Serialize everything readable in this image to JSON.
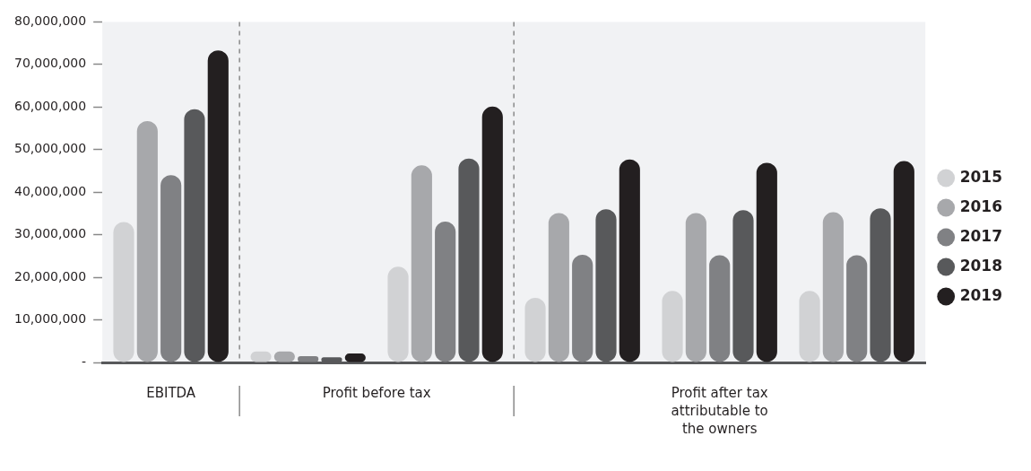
{
  "chart_data": {
    "type": "bar",
    "categories": [
      null,
      null,
      null,
      null,
      null,
      null
    ],
    "series": [
      {
        "name": "2015",
        "color": "#d1d2d4",
        "values": [
          33000000,
          2600000,
          22500000,
          15200000,
          16800000,
          16800000
        ]
      },
      {
        "name": "2016",
        "color": "#a7a8ab",
        "values": [
          56700000,
          2600000,
          46300000,
          35100000,
          35100000,
          35300000
        ]
      },
      {
        "name": "2017",
        "color": "#808184",
        "values": [
          44000000,
          1500000,
          33100000,
          25300000,
          25200000,
          25200000
        ]
      },
      {
        "name": "2018",
        "color": "#58595b",
        "values": [
          59500000,
          1200000,
          47900000,
          36000000,
          35800000,
          36200000
        ]
      },
      {
        "name": "2019",
        "color": "#231f20",
        "values": [
          73300000,
          2100000,
          60100000,
          47700000,
          46900000,
          47300000
        ]
      }
    ],
    "ylim": [
      0,
      80000000
    ],
    "yticks": [
      {
        "value": 0,
        "label": "-"
      },
      {
        "value": 10000000,
        "label": "10,000,000"
      },
      {
        "value": 20000000,
        "label": "20,000,000"
      },
      {
        "value": 30000000,
        "label": "30,000,000"
      },
      {
        "value": 40000000,
        "label": "40,000,000"
      },
      {
        "value": 50000000,
        "label": "50,000,000"
      },
      {
        "value": 60000000,
        "label": "60,000,000"
      },
      {
        "value": 70000000,
        "label": "70,000,000"
      },
      {
        "value": 80000000,
        "label": "80,000,000"
      }
    ],
    "annotations": [
      "EBITDA",
      "Profit before tax",
      "Profit after tax attributable to the owners"
    ],
    "legend": "right",
    "grid": false,
    "marker": "circle"
  }
}
